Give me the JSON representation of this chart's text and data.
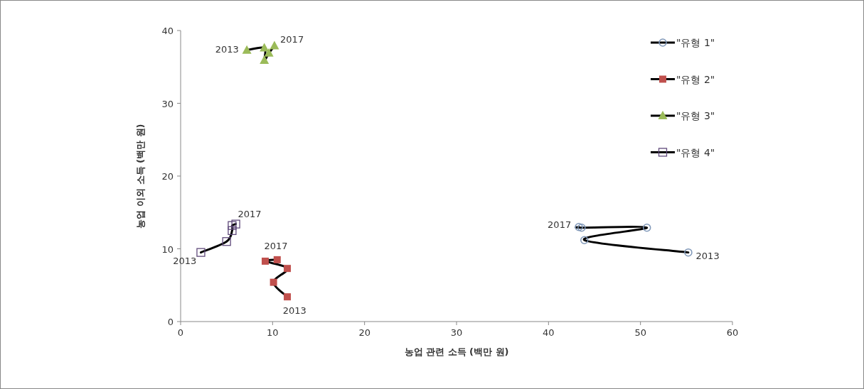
{
  "chart_data": {
    "type": "line",
    "xlabel": "농업 관련 소득 (백만 원)",
    "ylabel": "농업 이외 소득 (백만 원)",
    "xlim": [
      0,
      60
    ],
    "ylim": [
      0,
      40
    ],
    "xticks": [
      0,
      10,
      20,
      30,
      40,
      50,
      60
    ],
    "yticks": [
      0,
      10,
      20,
      30,
      40
    ],
    "legend": "top right",
    "grid": false,
    "series": [
      {
        "name": "\"유형 1\"",
        "color": "#7f97b8",
        "marker": "circle",
        "x": [
          55.2,
          43.9,
          50.7,
          43.6,
          43.3
        ],
        "values": [
          9.5,
          11.2,
          12.9,
          12.9,
          13.0
        ]
      },
      {
        "name": "\"유형 2\"",
        "color": "#c0504d",
        "marker": "square",
        "x": [
          11.6,
          10.1,
          11.6,
          9.2,
          10.5
        ],
        "values": [
          3.4,
          5.4,
          7.3,
          8.3,
          8.5
        ]
      },
      {
        "name": "\"유형 3\"",
        "color": "#9bbb59",
        "marker": "triangle",
        "x": [
          7.2,
          9.1,
          9.1,
          9.6,
          10.2
        ],
        "values": [
          37.3,
          37.6,
          35.9,
          36.9,
          37.9
        ]
      },
      {
        "name": "\"유형 4\"",
        "color": "#604a7b",
        "marker": "square_open",
        "x": [
          2.2,
          5.0,
          5.6,
          5.6,
          6.0
        ],
        "values": [
          9.5,
          11.0,
          12.5,
          13.2,
          13.4
        ]
      }
    ],
    "annotations": [
      {
        "text": "2017",
        "x": 43.3,
        "y": 13.0
      },
      {
        "text": "2013",
        "x": 55.2,
        "y": 9.5
      },
      {
        "text": "2017",
        "x": 10.5,
        "y": 8.5
      },
      {
        "text": "2013",
        "x": 11.6,
        "y": 3.4
      },
      {
        "text": "2013",
        "x": 7.2,
        "y": 37.3
      },
      {
        "text": "2017",
        "x": 10.2,
        "y": 37.9
      },
      {
        "text": "2017",
        "x": 6.0,
        "y": 13.4
      },
      {
        "text": "2013",
        "x": 2.2,
        "y": 9.5
      }
    ]
  }
}
